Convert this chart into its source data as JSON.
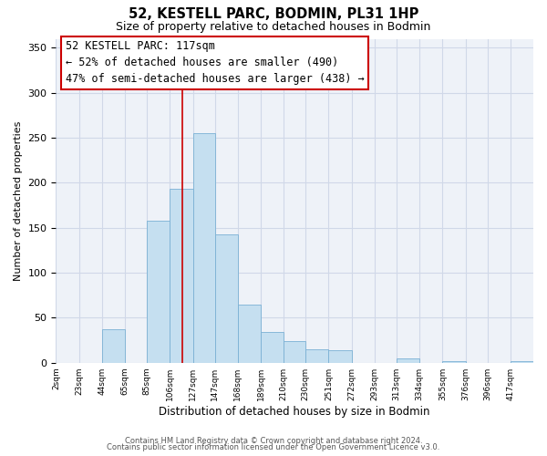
{
  "title": "52, KESTELL PARC, BODMIN, PL31 1HP",
  "subtitle": "Size of property relative to detached houses in Bodmin",
  "xlabel": "Distribution of detached houses by size in Bodmin",
  "ylabel": "Number of detached properties",
  "footnote1": "Contains HM Land Registry data © Crown copyright and database right 2024.",
  "footnote2": "Contains public sector information licensed under the Open Government Licence v3.0.",
  "bin_labels": [
    "2sqm",
    "23sqm",
    "44sqm",
    "65sqm",
    "85sqm",
    "106sqm",
    "127sqm",
    "147sqm",
    "168sqm",
    "189sqm",
    "210sqm",
    "230sqm",
    "251sqm",
    "272sqm",
    "293sqm",
    "313sqm",
    "334sqm",
    "355sqm",
    "376sqm",
    "396sqm",
    "417sqm"
  ],
  "bar_values": [
    0,
    0,
    37,
    0,
    158,
    193,
    255,
    143,
    65,
    34,
    24,
    15,
    14,
    0,
    0,
    5,
    0,
    2,
    0,
    0,
    2
  ],
  "bar_color": "#c5dff0",
  "bar_edge_color": "#7ab0d4",
  "vline_color": "#cc0000",
  "annotation_title": "52 KESTELL PARC: 117sqm",
  "annotation_line1": "← 52% of detached houses are smaller (490)",
  "annotation_line2": "47% of semi-detached houses are larger (438) →",
  "ylim": [
    0,
    360
  ],
  "yticks": [
    0,
    50,
    100,
    150,
    200,
    250,
    300,
    350
  ],
  "bin_edges": [
    2,
    23,
    44,
    65,
    85,
    106,
    127,
    147,
    168,
    189,
    210,
    230,
    251,
    272,
    293,
    313,
    334,
    355,
    376,
    396,
    417,
    438
  ],
  "property_sqm": 117,
  "grid_color": "#d0d8e8",
  "background_color": "#eef2f8"
}
